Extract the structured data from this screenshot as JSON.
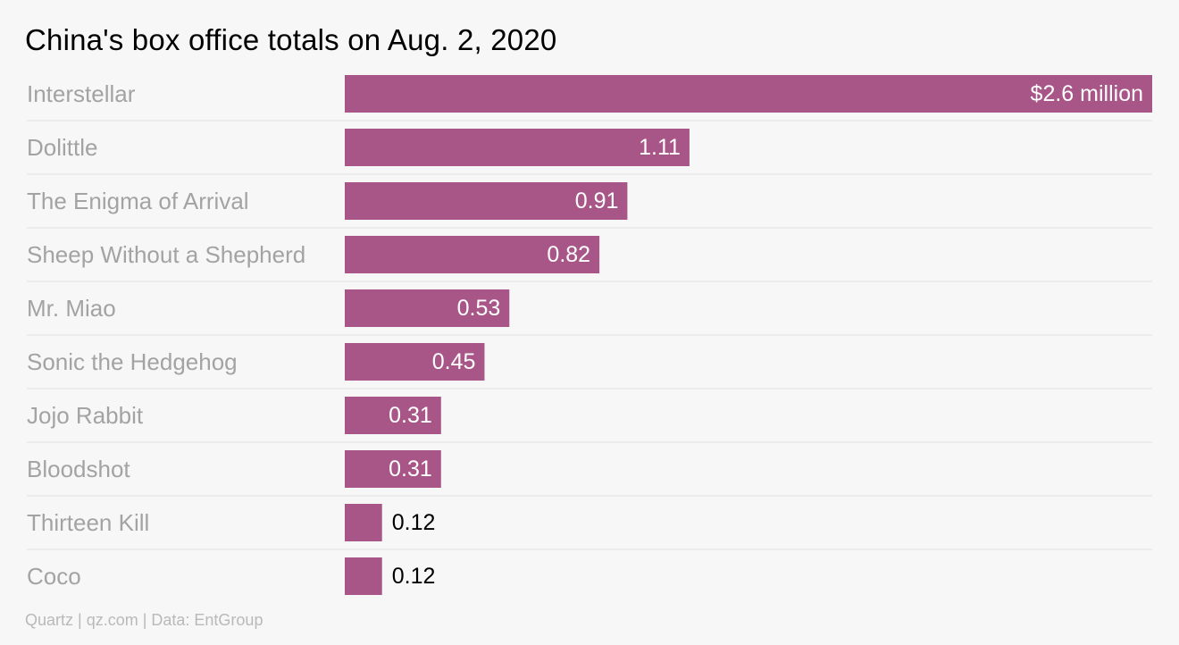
{
  "title": "China's box office totals on Aug. 2, 2020",
  "source": "Quartz | qz.com | Data: EntGroup",
  "colors": {
    "bar": "#a85688",
    "category_text": "#a3a3a3",
    "background": "#f8f7f7",
    "divider": "#e2e1e1"
  },
  "chart_data": {
    "type": "bar",
    "orientation": "horizontal",
    "title": "China's box office totals on Aug. 2, 2020",
    "unit": "$ million",
    "categories": [
      "Interstellar",
      "Dolittle",
      "The Enigma of Arrival",
      "Sheep Without a Shepherd",
      "Mr. Miao",
      "Sonic the Hedgehog",
      "Jojo Rabbit",
      "Bloodshot",
      "Thirteen Kill",
      "Coco"
    ],
    "values": [
      2.6,
      1.11,
      0.91,
      0.82,
      0.53,
      0.45,
      0.31,
      0.31,
      0.12,
      0.12
    ],
    "labels": [
      "$2.6 million",
      "1.11",
      "0.91",
      "0.82",
      "0.53",
      "0.45",
      "0.31",
      "0.31",
      "0.12",
      "0.12"
    ],
    "xlim": [
      0,
      2.6
    ],
    "grid": false,
    "legend": "none"
  }
}
